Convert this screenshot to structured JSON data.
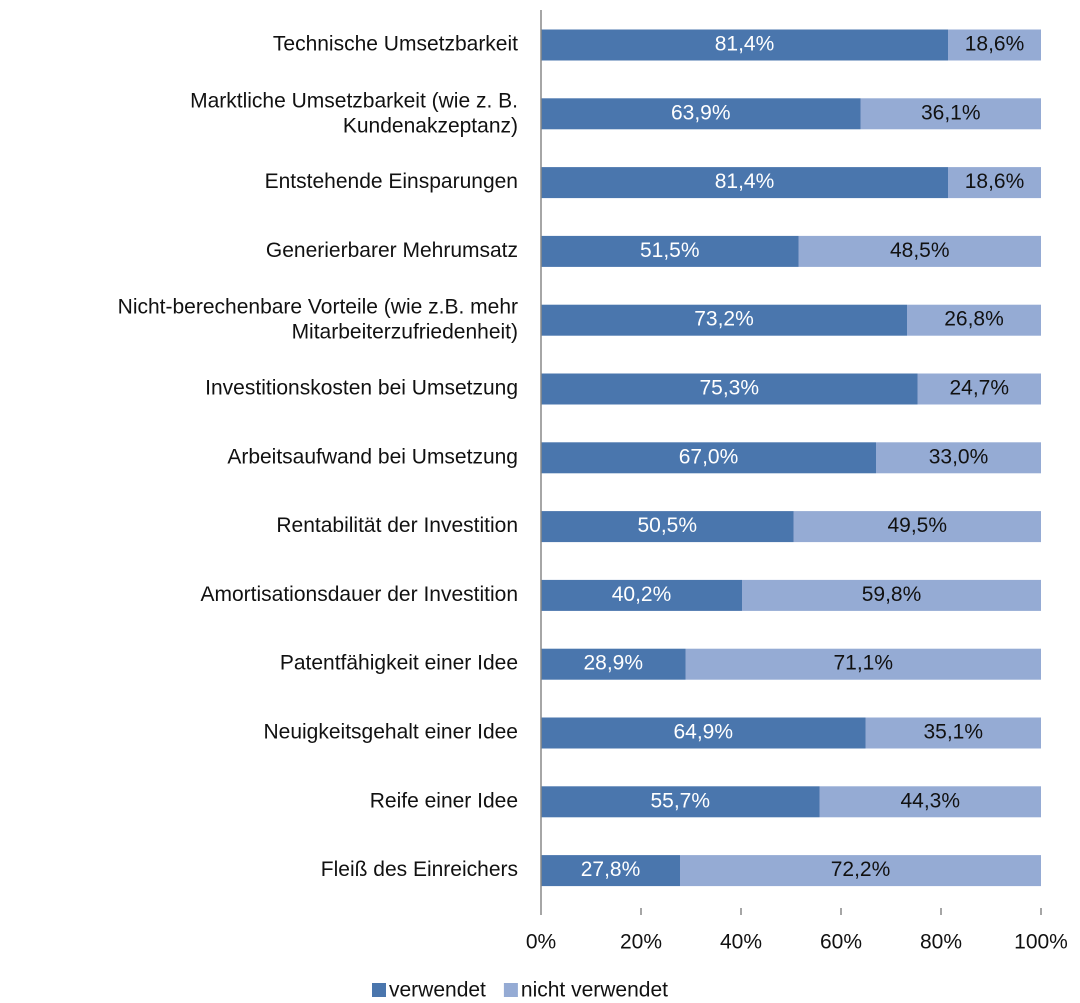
{
  "chart_data": {
    "type": "stacked_barh",
    "categories": [
      "Technische Umsetzbarkeit",
      "Marktliche Umsetzbarkeit (wie z. B.\nKundenakzeptanz)",
      "Entstehende Einsparungen",
      "Generierbarer Mehrumsatz",
      "Nicht-berechenbare Vorteile (wie z.B. mehr\nMitarbeiterzufriedenheit)",
      "Investitionskosten bei Umsetzung",
      "Arbeitsaufwand bei Umsetzung",
      "Rentabilität der Investition",
      "Amortisationsdauer der Investition",
      "Patentfähigkeit einer Idee",
      "Neuigkeitsgehalt einer Idee",
      "Reife einer Idee",
      "Fleiß des Einreichers"
    ],
    "series": [
      {
        "name": "verwendet",
        "color": "#4a76ad",
        "values": [
          81.4,
          63.9,
          81.4,
          51.5,
          73.2,
          75.3,
          67.0,
          50.5,
          40.2,
          28.9,
          64.9,
          55.7,
          27.8
        ],
        "value_labels": [
          "81,4%",
          "63,9%",
          "81,4%",
          "51,5%",
          "73,2%",
          "75,3%",
          "67,0%",
          "50,5%",
          "40,2%",
          "28,9%",
          "64,9%",
          "55,7%",
          "27,8%"
        ]
      },
      {
        "name": "nicht verwendet",
        "color": "#95abd4",
        "values": [
          18.6,
          36.1,
          18.6,
          48.5,
          26.8,
          24.7,
          33.0,
          49.5,
          59.8,
          71.1,
          35.1,
          44.3,
          72.2
        ],
        "value_labels": [
          "18,6%",
          "36,1%",
          "18,6%",
          "48,5%",
          "26,8%",
          "24,7%",
          "33,0%",
          "49,5%",
          "59,8%",
          "71,1%",
          "35,1%",
          "44,3%",
          "72,2%"
        ]
      }
    ],
    "xlim": [
      0,
      100
    ],
    "xticks": [
      {
        "value": 0,
        "label": "0%"
      },
      {
        "value": 20,
        "label": "20%"
      },
      {
        "value": 40,
        "label": "40%"
      },
      {
        "value": 60,
        "label": "60%"
      },
      {
        "value": 80,
        "label": "80%"
      },
      {
        "value": 100,
        "label": "100%"
      }
    ],
    "legend": "bottom"
  }
}
